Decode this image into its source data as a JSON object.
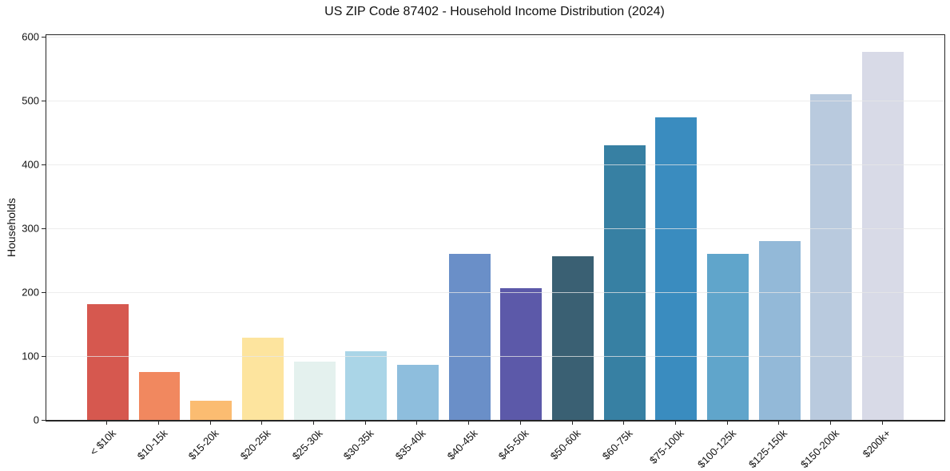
{
  "chart_data": {
    "type": "bar",
    "title": "US ZIP Code 87402 - Household Income Distribution (2024)",
    "xlabel": "",
    "ylabel": "Households",
    "categories": [
      "< $10k",
      "$10-15k",
      "$15-20k",
      "$20-25k",
      "$25-30k",
      "$30-35k",
      "$35-40k",
      "$40-45k",
      "$45-50k",
      "$50-60k",
      "$60-75k",
      "$75-100k",
      "$100-125k",
      "$125-150k",
      "$150-200k",
      "$200k+"
    ],
    "values": [
      182,
      76,
      31,
      130,
      92,
      109,
      87,
      261,
      208,
      258,
      431,
      475,
      262,
      281,
      512,
      578
    ],
    "bar_colors": [
      "#d6584f",
      "#f1885f",
      "#fbbc71",
      "#fde49e",
      "#e4f1ee",
      "#aad5e7",
      "#8ebedd",
      "#6a8fc8",
      "#5c59a9",
      "#3a6073",
      "#3780a3",
      "#3a8cbf",
      "#60a5cb",
      "#93b9d8",
      "#b9cade",
      "#d8dae7"
    ],
    "ylim": [
      0,
      604
    ],
    "yticks": [
      0,
      100,
      200,
      300,
      400,
      500,
      600
    ],
    "bar_width_fraction": 0.8,
    "grid": "horizontal",
    "grid_color": "#e7e7e7",
    "axis_color": "#262626",
    "background_color": "#ffffff",
    "legend": "none"
  }
}
